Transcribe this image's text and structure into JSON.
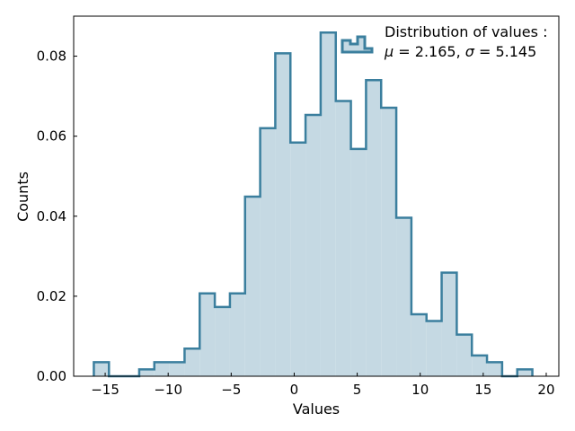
{
  "chart_data": {
    "type": "step-histogram",
    "xlabel": "Values",
    "ylabel": "Counts",
    "xlim": [
      -17.5,
      21
    ],
    "ylim": [
      0,
      0.09
    ],
    "xticks": [
      -15,
      -10,
      -5,
      0,
      5,
      10,
      15,
      20
    ],
    "yticks": [
      0.0,
      0.02,
      0.04,
      0.06,
      0.08
    ],
    "xtick_labels": [
      "−15",
      "−10",
      "−5",
      "0",
      "5",
      "10",
      "15",
      "20"
    ],
    "ytick_labels": [
      "0.00",
      "0.02",
      "0.04",
      "0.06",
      "0.08"
    ],
    "grid": false,
    "legend": {
      "placement": "top-right",
      "line1": "Distribution of values :",
      "line2_mu_symbol": "μ",
      "line2_mu_value": " = 2.165, ",
      "line2_sigma_symbol": "σ",
      "line2_sigma_value": " = 5.145"
    },
    "bin_edges": [
      -15.9,
      -14.7,
      -13.5,
      -12.3,
      -11.1,
      -9.9,
      -8.7,
      -7.5,
      -6.3,
      -5.1,
      -3.9,
      -2.7,
      -1.5,
      -0.3,
      0.9,
      2.1,
      3.3,
      4.5,
      5.7,
      6.9,
      8.1,
      9.3,
      10.5,
      11.7,
      12.9,
      14.1,
      15.3,
      16.5,
      17.7,
      18.9
    ],
    "values": [
      0.0035,
      0.0,
      0.0,
      0.0017,
      0.0035,
      0.0035,
      0.0069,
      0.0207,
      0.0173,
      0.0207,
      0.0449,
      0.062,
      0.0807,
      0.0584,
      0.0653,
      0.0859,
      0.0688,
      0.0568,
      0.074,
      0.0671,
      0.0396,
      0.0155,
      0.0138,
      0.0259,
      0.0104,
      0.0052,
      0.0035,
      0.0,
      0.0017
    ],
    "colors": {
      "fill": "#c5d9e3",
      "edge": "#3b7f9e"
    }
  }
}
